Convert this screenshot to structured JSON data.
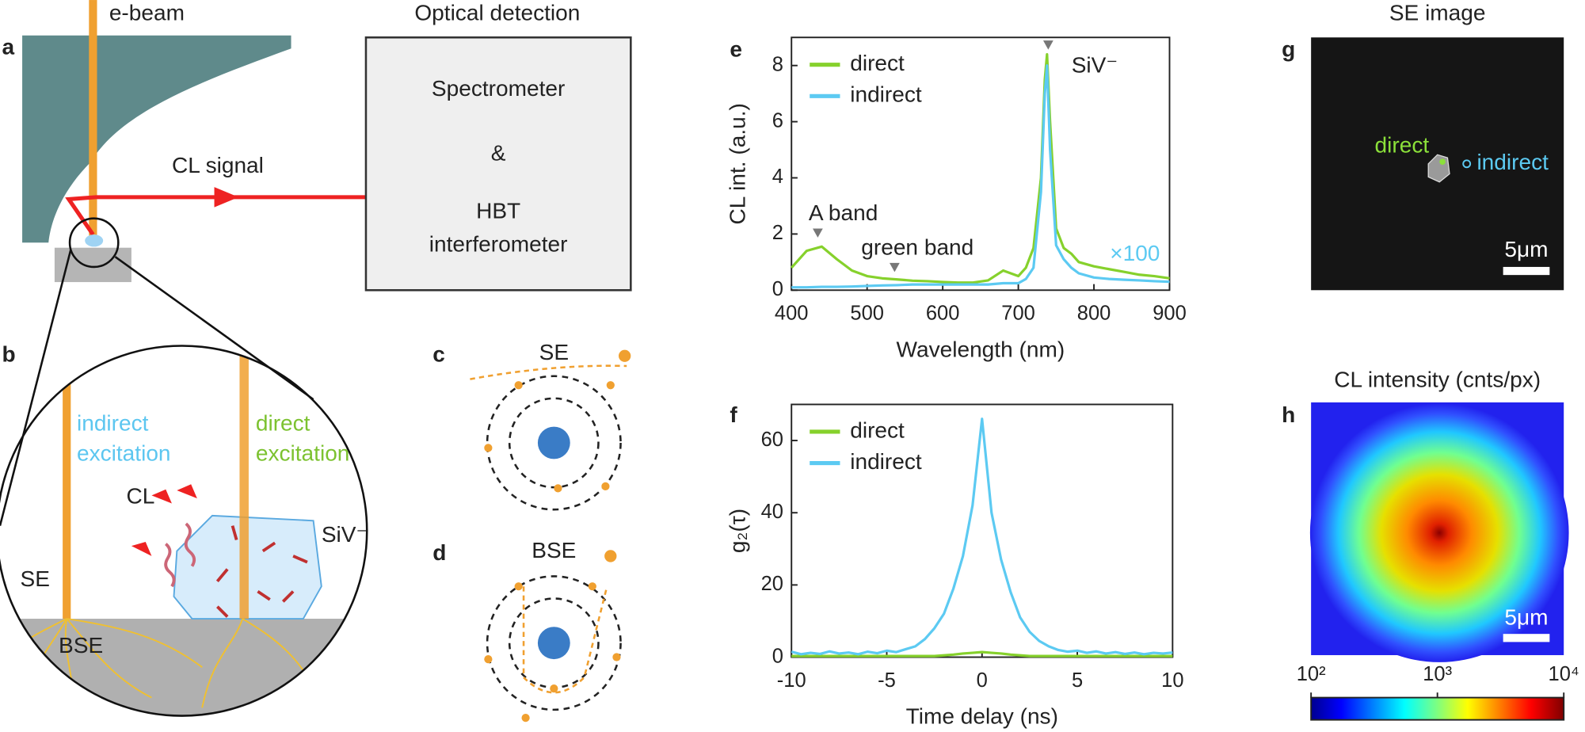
{
  "chart_data": [
    {
      "type": "line",
      "xlabel": "Wavelength (nm)",
      "ylabel": "CL int. (a.u.)",
      "x": [
        400,
        420,
        440,
        460,
        480,
        500,
        520,
        540,
        560,
        580,
        600,
        620,
        640,
        660,
        680,
        700,
        710,
        720,
        730,
        735,
        738,
        742,
        750,
        760,
        770,
        780,
        800,
        820,
        840,
        860,
        880,
        900
      ],
      "series": [
        {
          "name": "direct",
          "color": "#86d12c",
          "values": [
            0.8,
            1.4,
            1.55,
            1.1,
            0.7,
            0.5,
            0.42,
            0.38,
            0.34,
            0.32,
            0.29,
            0.27,
            0.27,
            0.35,
            0.7,
            0.5,
            0.8,
            1.5,
            4,
            7.5,
            8.4,
            6,
            2.2,
            1.5,
            1.3,
            1.0,
            0.85,
            0.75,
            0.65,
            0.55,
            0.5,
            0.42
          ]
        },
        {
          "name": "indirect",
          "color": "#5ccaf2",
          "values": [
            0.1,
            0.1,
            0.12,
            0.12,
            0.13,
            0.15,
            0.17,
            0.18,
            0.2,
            0.2,
            0.2,
            0.2,
            0.2,
            0.2,
            0.25,
            0.25,
            0.4,
            0.8,
            3.5,
            7,
            8.0,
            5,
            1.6,
            1.1,
            0.8,
            0.6,
            0.45,
            0.4,
            0.37,
            0.35,
            0.32,
            0.3
          ]
        }
      ],
      "xlim": [
        400,
        900
      ],
      "xticks": [
        400,
        500,
        600,
        700,
        800,
        900
      ],
      "ylim": [
        0,
        9
      ],
      "yticks": [
        0,
        2,
        4,
        6,
        8
      ],
      "legend": "upper left",
      "annotations": [
        "A band",
        "green band",
        "SiV⁻",
        "×100"
      ]
    },
    {
      "type": "line",
      "xlabel": "Time delay (ns)",
      "ylabel": "g₂(τ)",
      "x": [
        -10,
        -9.5,
        -9,
        -8.5,
        -8,
        -7.5,
        -7,
        -6.5,
        -6,
        -5.5,
        -5,
        -4.5,
        -4,
        -3.5,
        -3,
        -2.5,
        -2,
        -1.5,
        -1,
        -0.5,
        0,
        0.5,
        1,
        1.5,
        2,
        2.5,
        3,
        3.5,
        4,
        4.5,
        5,
        5.5,
        6,
        6.5,
        7,
        7.5,
        8,
        8.5,
        9,
        9.5,
        10
      ],
      "series": [
        {
          "name": "direct",
          "color": "#86d12c",
          "values": [
            0.3,
            0.3,
            0.3,
            0.3,
            0.3,
            0.3,
            0.3,
            0.3,
            0.3,
            0.3,
            0.3,
            0.3,
            0.3,
            0.3,
            0.3,
            0.3,
            0.5,
            0.7,
            1,
            1.2,
            1.4,
            1.2,
            1,
            0.7,
            0.5,
            0.3,
            0.3,
            0.3,
            0.3,
            0.3,
            0.3,
            0.3,
            0.3,
            0.3,
            0.3,
            0.3,
            0.3,
            0.3,
            0.3,
            0.3,
            0.3
          ]
        },
        {
          "name": "indirect",
          "color": "#5ccaf2",
          "values": [
            1.5,
            0.8,
            1.2,
            0.9,
            1.6,
            1,
            1.3,
            0.8,
            1.5,
            1.1,
            1.8,
            1.4,
            2.2,
            3,
            5,
            8,
            12,
            19,
            28,
            42,
            66,
            40,
            27,
            18,
            11,
            7,
            4.5,
            3,
            2,
            1.5,
            1.8,
            1.2,
            1.6,
            1,
            1.4,
            0.9,
            1.3,
            0.8,
            1.2,
            1,
            1.3
          ]
        }
      ],
      "xlim": [
        -10,
        10
      ],
      "xticks": [
        -10,
        -5,
        0,
        5,
        10
      ],
      "ylim": [
        0,
        70
      ],
      "yticks": [
        0,
        20,
        40,
        60
      ],
      "legend": "upper left"
    },
    {
      "type": "colorbar",
      "xlim": [
        100,
        10000
      ],
      "log": true,
      "xticks": [
        {
          "value": 100,
          "label": "10²"
        },
        {
          "value": 1000,
          "label": "10³"
        },
        {
          "value": 10000,
          "label": "10⁴"
        }
      ]
    }
  ],
  "panel_labels": [
    "a",
    "b",
    "c",
    "d",
    "e",
    "f",
    "g",
    "h"
  ],
  "setup": {
    "beam": "e-beam",
    "box_title": "Optical detection",
    "box_lines": [
      "Spectrometer",
      "&",
      "HBT",
      "interferometer"
    ],
    "signal": "CL signal"
  },
  "zoom": {
    "indirect": [
      "indirect",
      "excitation"
    ],
    "direct": [
      "direct",
      "excitation"
    ],
    "cl": "CL",
    "siv": "SiV⁻",
    "se": "SE",
    "bse": "BSE"
  },
  "c": {
    "title": "SE"
  },
  "d": {
    "title": "BSE"
  },
  "g": {
    "title": "SE image",
    "direct": "direct",
    "indirect": "indirect",
    "scale": "5μm"
  },
  "h": {
    "title": "CL intensity (cnts/px)",
    "scale": "5μm"
  }
}
